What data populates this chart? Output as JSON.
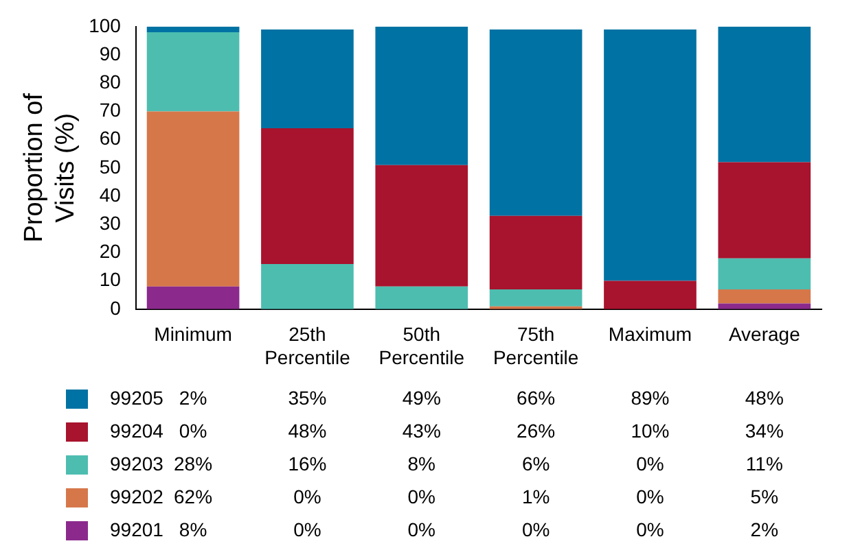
{
  "chart_data": {
    "type": "bar",
    "stacked": true,
    "ylabel": "Proportion of Visits (%)",
    "categories": [
      "Minimum",
      "25th Percentile",
      "50th Percentile",
      "75th Percentile",
      "Maximum",
      "Average"
    ],
    "ylim": [
      0,
      100
    ],
    "yticks": [
      0,
      10,
      20,
      30,
      40,
      50,
      60,
      70,
      80,
      90,
      100
    ],
    "grid": false,
    "legend": "bottom",
    "series": [
      {
        "name": "99201",
        "color": "#8b2a8c",
        "values": [
          8,
          0,
          0,
          0,
          0,
          2
        ],
        "value_labels": [
          "8%",
          "0%",
          "0%",
          "0%",
          "0%",
          "2%"
        ]
      },
      {
        "name": "99202",
        "color": "#d6774a",
        "values": [
          62,
          0,
          0,
          1,
          0,
          5
        ],
        "value_labels": [
          "62%",
          "0%",
          "0%",
          "1%",
          "0%",
          "5%"
        ]
      },
      {
        "name": "99203",
        "color": "#4dbdb0",
        "values": [
          28,
          16,
          8,
          6,
          0,
          11
        ],
        "value_labels": [
          "28%",
          "16%",
          "8%",
          "6%",
          "0%",
          "11%"
        ]
      },
      {
        "name": "99204",
        "color": "#a8132d",
        "values": [
          0,
          48,
          43,
          26,
          10,
          34
        ],
        "value_labels": [
          "0%",
          "48%",
          "43%",
          "26%",
          "10%",
          "34%"
        ]
      },
      {
        "name": "99205",
        "color": "#0072a3",
        "values": [
          2,
          35,
          49,
          66,
          89,
          48
        ],
        "value_labels": [
          "2%",
          "35%",
          "49%",
          "66%",
          "89%",
          "48%"
        ]
      }
    ]
  }
}
